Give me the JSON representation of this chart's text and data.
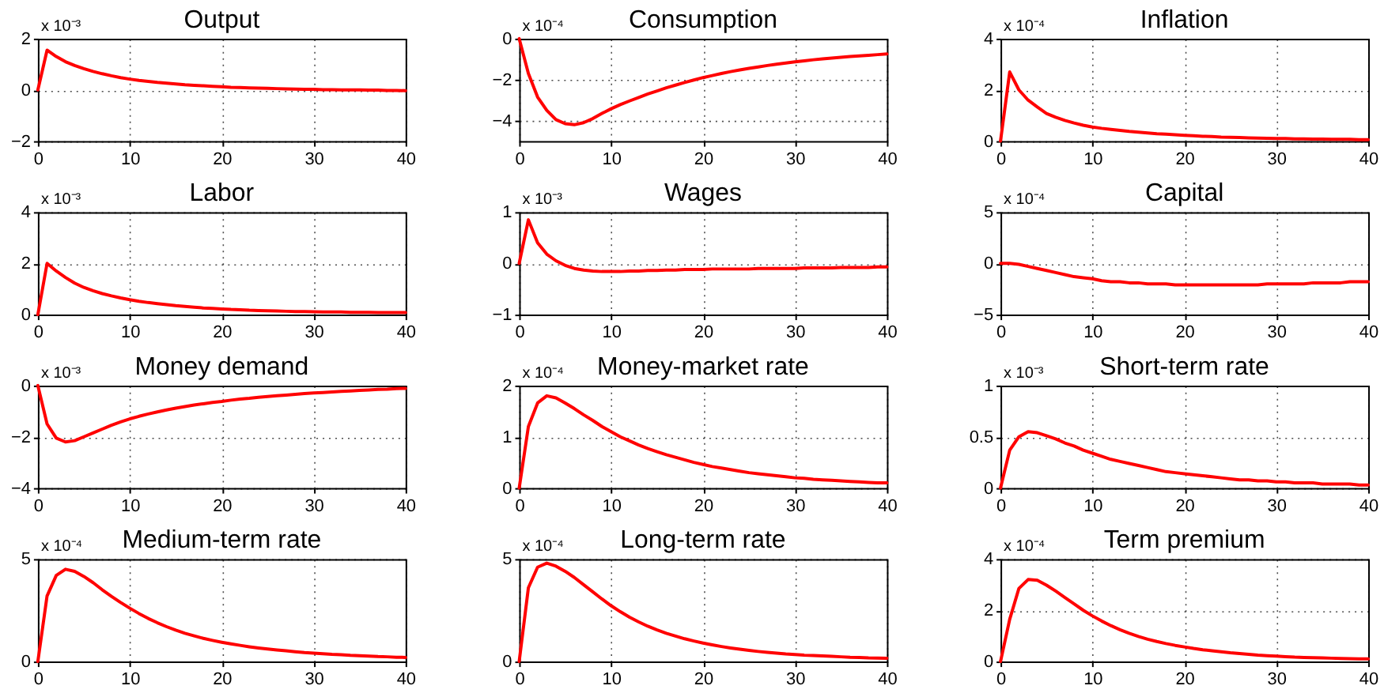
{
  "chart_data": [
    {
      "type": "line",
      "title": "Output",
      "x": [
        0,
        1,
        2,
        3,
        4,
        5,
        6,
        7,
        8,
        9,
        10,
        11,
        12,
        13,
        14,
        15,
        16,
        17,
        18,
        19,
        20,
        21,
        22,
        23,
        24,
        25,
        26,
        27,
        28,
        29,
        30,
        31,
        32,
        33,
        34,
        35,
        36,
        37,
        38,
        39,
        40
      ],
      "series": [
        {
          "color": "#ff0000",
          "values": [
            0,
            1.55,
            1.3,
            1.1,
            0.95,
            0.83,
            0.72,
            0.63,
            0.55,
            0.48,
            0.42,
            0.37,
            0.33,
            0.29,
            0.26,
            0.23,
            0.2,
            0.18,
            0.16,
            0.14,
            0.12,
            0.1,
            0.09,
            0.08,
            0.07,
            0.06,
            0.05,
            0.04,
            0.03,
            0.02,
            0.02,
            0.01,
            0.01,
            0,
            0,
            0,
            -0.01,
            -0.01,
            -0.02,
            -0.02,
            -0.03
          ]
        }
      ],
      "xlim": [
        0,
        40
      ],
      "xticks": [
        0,
        10,
        20,
        30,
        40
      ],
      "ylim": [
        -2,
        2
      ],
      "yticks": [
        -2,
        0,
        2
      ],
      "grid": true,
      "line_style": "solid",
      "annotations": [
        "x 10⁻³"
      ]
    },
    {
      "type": "line",
      "title": "Consumption",
      "x": [
        0,
        1,
        2,
        3,
        4,
        5,
        6,
        7,
        8,
        9,
        10,
        11,
        12,
        13,
        14,
        15,
        16,
        17,
        18,
        19,
        20,
        21,
        22,
        23,
        24,
        25,
        26,
        27,
        28,
        29,
        30,
        31,
        32,
        33,
        34,
        35,
        36,
        37,
        38,
        39,
        40
      ],
      "series": [
        {
          "color": "#ff0000",
          "values": [
            0,
            -1.7,
            -2.85,
            -3.5,
            -3.95,
            -4.15,
            -4.2,
            -4.1,
            -3.9,
            -3.65,
            -3.42,
            -3.22,
            -3.04,
            -2.87,
            -2.7,
            -2.55,
            -2.4,
            -2.27,
            -2.14,
            -2.02,
            -1.9,
            -1.8,
            -1.7,
            -1.61,
            -1.53,
            -1.45,
            -1.38,
            -1.31,
            -1.25,
            -1.19,
            -1.13,
            -1.08,
            -1.03,
            -0.99,
            -0.95,
            -0.91,
            -0.87,
            -0.84,
            -0.81,
            -0.78,
            -0.75
          ]
        }
      ],
      "xlim": [
        0,
        40
      ],
      "xticks": [
        0,
        10,
        20,
        30,
        40
      ],
      "ylim": [
        -5,
        0
      ],
      "yticks": [
        -4,
        -2,
        0
      ],
      "grid": true,
      "line_style": "solid",
      "annotations": [
        "x 10⁻⁴"
      ]
    },
    {
      "type": "line",
      "title": "Inflation",
      "x": [
        0,
        1,
        2,
        3,
        4,
        5,
        6,
        7,
        8,
        9,
        10,
        11,
        12,
        13,
        14,
        15,
        16,
        17,
        18,
        19,
        20,
        21,
        22,
        23,
        24,
        25,
        26,
        27,
        28,
        29,
        30,
        31,
        32,
        33,
        34,
        35,
        36,
        37,
        38,
        39,
        40
      ],
      "series": [
        {
          "color": "#ff0000",
          "values": [
            0,
            2.7,
            2.0,
            1.6,
            1.33,
            1.08,
            0.93,
            0.81,
            0.71,
            0.62,
            0.55,
            0.5,
            0.46,
            0.42,
            0.38,
            0.35,
            0.32,
            0.29,
            0.27,
            0.25,
            0.23,
            0.21,
            0.19,
            0.18,
            0.16,
            0.15,
            0.14,
            0.13,
            0.12,
            0.11,
            0.1,
            0.1,
            0.09,
            0.09,
            0.08,
            0.08,
            0.07,
            0.07,
            0.07,
            0.06,
            0.06
          ]
        }
      ],
      "xlim": [
        0,
        40
      ],
      "xticks": [
        0,
        10,
        20,
        30,
        40
      ],
      "ylim": [
        0,
        4
      ],
      "yticks": [
        0,
        2,
        4
      ],
      "grid": true,
      "line_style": "solid",
      "annotations": [
        "x 10⁻⁴"
      ]
    },
    {
      "type": "line",
      "title": "Labor",
      "x": [
        0,
        1,
        2,
        3,
        4,
        5,
        6,
        7,
        8,
        9,
        10,
        11,
        12,
        13,
        14,
        15,
        16,
        17,
        18,
        19,
        20,
        21,
        22,
        23,
        24,
        25,
        26,
        27,
        28,
        29,
        30,
        31,
        32,
        33,
        34,
        35,
        36,
        37,
        38,
        39,
        40
      ],
      "series": [
        {
          "color": "#ff0000",
          "values": [
            0,
            2.0,
            1.7,
            1.45,
            1.23,
            1.06,
            0.93,
            0.82,
            0.73,
            0.65,
            0.58,
            0.52,
            0.47,
            0.43,
            0.39,
            0.35,
            0.32,
            0.29,
            0.26,
            0.24,
            0.22,
            0.2,
            0.19,
            0.17,
            0.16,
            0.15,
            0.14,
            0.13,
            0.12,
            0.12,
            0.11,
            0.1,
            0.1,
            0.1,
            0.09,
            0.09,
            0.09,
            0.08,
            0.08,
            0.08,
            0.08
          ]
        }
      ],
      "xlim": [
        0,
        40
      ],
      "xticks": [
        0,
        10,
        20,
        30,
        40
      ],
      "ylim": [
        0,
        4
      ],
      "yticks": [
        0,
        2,
        4
      ],
      "grid": true,
      "line_style": "solid",
      "annotations": [
        "x 10⁻³"
      ]
    },
    {
      "type": "line",
      "title": "Wages",
      "x": [
        0,
        1,
        2,
        3,
        4,
        5,
        6,
        7,
        8,
        9,
        10,
        11,
        12,
        13,
        14,
        15,
        16,
        17,
        18,
        19,
        20,
        21,
        22,
        23,
        24,
        25,
        26,
        27,
        28,
        29,
        30,
        31,
        32,
        33,
        34,
        35,
        36,
        37,
        38,
        39,
        40
      ],
      "series": [
        {
          "color": "#ff0000",
          "values": [
            0,
            0.85,
            0.4,
            0.18,
            0.05,
            -0.04,
            -0.1,
            -0.13,
            -0.15,
            -0.16,
            -0.16,
            -0.16,
            -0.15,
            -0.15,
            -0.14,
            -0.14,
            -0.13,
            -0.13,
            -0.12,
            -0.12,
            -0.12,
            -0.11,
            -0.11,
            -0.11,
            -0.11,
            -0.11,
            -0.1,
            -0.1,
            -0.1,
            -0.1,
            -0.1,
            -0.09,
            -0.09,
            -0.09,
            -0.09,
            -0.08,
            -0.08,
            -0.08,
            -0.08,
            -0.07,
            -0.07
          ]
        }
      ],
      "xlim": [
        0,
        40
      ],
      "xticks": [
        0,
        10,
        20,
        30,
        40
      ],
      "ylim": [
        -1,
        1
      ],
      "yticks": [
        -1,
        0,
        1
      ],
      "grid": true,
      "line_style": "solid",
      "annotations": [
        "x 10⁻³"
      ]
    },
    {
      "type": "line",
      "title": "Capital",
      "x": [
        0,
        1,
        2,
        3,
        4,
        5,
        6,
        7,
        8,
        9,
        10,
        11,
        12,
        13,
        14,
        15,
        16,
        17,
        18,
        19,
        20,
        21,
        22,
        23,
        24,
        25,
        26,
        27,
        28,
        29,
        30,
        31,
        32,
        33,
        34,
        35,
        36,
        37,
        38,
        39,
        40
      ],
      "series": [
        {
          "color": "#ff0000",
          "values": [
            0,
            0,
            -0.1,
            -0.3,
            -0.5,
            -0.7,
            -0.9,
            -1.1,
            -1.3,
            -1.4,
            -1.5,
            -1.7,
            -1.8,
            -1.8,
            -1.9,
            -1.9,
            -2.0,
            -2.0,
            -2.0,
            -2.1,
            -2.1,
            -2.1,
            -2.1,
            -2.1,
            -2.1,
            -2.1,
            -2.1,
            -2.1,
            -2.1,
            -2.0,
            -2.0,
            -2.0,
            -2.0,
            -2.0,
            -1.9,
            -1.9,
            -1.9,
            -1.9,
            -1.8,
            -1.8,
            -1.8
          ]
        }
      ],
      "xlim": [
        0,
        40
      ],
      "xticks": [
        0,
        10,
        20,
        30,
        40
      ],
      "ylim": [
        -5,
        5
      ],
      "yticks": [
        -5,
        0,
        5
      ],
      "grid": true,
      "line_style": "solid",
      "annotations": [
        "x 10⁻⁴"
      ]
    },
    {
      "type": "line",
      "title": "Money demand",
      "x": [
        0,
        1,
        2,
        3,
        4,
        5,
        6,
        7,
        8,
        9,
        10,
        11,
        12,
        13,
        14,
        15,
        16,
        17,
        18,
        19,
        20,
        21,
        22,
        23,
        24,
        25,
        26,
        27,
        28,
        29,
        30,
        31,
        32,
        33,
        34,
        35,
        36,
        37,
        38,
        39,
        40
      ],
      "series": [
        {
          "color": "#ff0000",
          "values": [
            0,
            -1.5,
            -2.05,
            -2.2,
            -2.15,
            -2.0,
            -1.85,
            -1.7,
            -1.55,
            -1.42,
            -1.3,
            -1.2,
            -1.11,
            -1.03,
            -0.95,
            -0.88,
            -0.82,
            -0.76,
            -0.71,
            -0.66,
            -0.62,
            -0.57,
            -0.53,
            -0.5,
            -0.46,
            -0.43,
            -0.4,
            -0.37,
            -0.34,
            -0.31,
            -0.29,
            -0.27,
            -0.25,
            -0.23,
            -0.21,
            -0.19,
            -0.17,
            -0.15,
            -0.14,
            -0.12,
            -0.11
          ]
        }
      ],
      "xlim": [
        0,
        40
      ],
      "xticks": [
        0,
        10,
        20,
        30,
        40
      ],
      "ylim": [
        -4,
        0
      ],
      "yticks": [
        -4,
        -2,
        0
      ],
      "grid": true,
      "line_style": "solid",
      "annotations": [
        "x 10⁻³"
      ]
    },
    {
      "type": "line",
      "title": "Money-market rate",
      "x": [
        0,
        1,
        2,
        3,
        4,
        5,
        6,
        7,
        8,
        9,
        10,
        11,
        12,
        13,
        14,
        15,
        16,
        17,
        18,
        19,
        20,
        21,
        22,
        23,
        24,
        25,
        26,
        27,
        28,
        29,
        30,
        31,
        32,
        33,
        34,
        35,
        36,
        37,
        38,
        39,
        40
      ],
      "series": [
        {
          "color": "#ff0000",
          "values": [
            0,
            1.2,
            1.66,
            1.8,
            1.76,
            1.66,
            1.55,
            1.43,
            1.32,
            1.2,
            1.1,
            1.0,
            0.92,
            0.84,
            0.77,
            0.71,
            0.65,
            0.6,
            0.55,
            0.5,
            0.46,
            0.42,
            0.39,
            0.36,
            0.33,
            0.3,
            0.28,
            0.26,
            0.24,
            0.22,
            0.2,
            0.19,
            0.17,
            0.16,
            0.15,
            0.14,
            0.13,
            0.12,
            0.11,
            0.1,
            0.1
          ]
        }
      ],
      "xlim": [
        0,
        40
      ],
      "xticks": [
        0,
        10,
        20,
        30,
        40
      ],
      "ylim": [
        0,
        2
      ],
      "yticks": [
        0,
        1,
        2
      ],
      "grid": true,
      "line_style": "solid",
      "annotations": [
        "x 10⁻⁴"
      ]
    },
    {
      "type": "line",
      "title": "Short-term rate",
      "x": [
        0,
        1,
        2,
        3,
        4,
        5,
        6,
        7,
        8,
        9,
        10,
        11,
        12,
        13,
        14,
        15,
        16,
        17,
        18,
        19,
        20,
        21,
        22,
        23,
        24,
        25,
        26,
        27,
        28,
        29,
        30,
        31,
        32,
        33,
        34,
        35,
        36,
        37,
        38,
        39,
        40
      ],
      "series": [
        {
          "color": "#ff0000",
          "values": [
            0,
            0.37,
            0.5,
            0.55,
            0.54,
            0.51,
            0.48,
            0.44,
            0.41,
            0.37,
            0.34,
            0.31,
            0.28,
            0.26,
            0.24,
            0.22,
            0.2,
            0.18,
            0.16,
            0.15,
            0.14,
            0.13,
            0.12,
            0.11,
            0.1,
            0.09,
            0.08,
            0.08,
            0.07,
            0.07,
            0.06,
            0.06,
            0.05,
            0.05,
            0.05,
            0.04,
            0.04,
            0.04,
            0.04,
            0.03,
            0.03
          ]
        }
      ],
      "xlim": [
        0,
        40
      ],
      "xticks": [
        0,
        10,
        20,
        30,
        40
      ],
      "ylim": [
        0,
        1
      ],
      "yticks": [
        0,
        0.5,
        1
      ],
      "grid": true,
      "line_style": "solid",
      "annotations": [
        "x 10⁻³"
      ]
    },
    {
      "type": "line",
      "title": "Medium-term rate",
      "x": [
        0,
        1,
        2,
        3,
        4,
        5,
        6,
        7,
        8,
        9,
        10,
        11,
        12,
        13,
        14,
        15,
        16,
        17,
        18,
        19,
        20,
        21,
        22,
        23,
        24,
        25,
        26,
        27,
        28,
        29,
        30,
        31,
        32,
        33,
        34,
        35,
        36,
        37,
        38,
        39,
        40
      ],
      "series": [
        {
          "color": "#ff0000",
          "values": [
            0,
            3.2,
            4.2,
            4.5,
            4.4,
            4.15,
            3.85,
            3.5,
            3.18,
            2.88,
            2.6,
            2.34,
            2.1,
            1.89,
            1.7,
            1.53,
            1.38,
            1.25,
            1.13,
            1.03,
            0.94,
            0.86,
            0.79,
            0.72,
            0.66,
            0.61,
            0.56,
            0.52,
            0.48,
            0.44,
            0.41,
            0.38,
            0.35,
            0.33,
            0.3,
            0.28,
            0.26,
            0.24,
            0.23,
            0.21,
            0.2
          ]
        }
      ],
      "xlim": [
        0,
        40
      ],
      "xticks": [
        0,
        10,
        20,
        30,
        40
      ],
      "ylim": [
        0,
        5
      ],
      "yticks": [
        0,
        5
      ],
      "grid": true,
      "line_style": "solid",
      "annotations": [
        "x 10⁻⁴"
      ]
    },
    {
      "type": "line",
      "title": "Long-term rate",
      "x": [
        0,
        1,
        2,
        3,
        4,
        5,
        6,
        7,
        8,
        9,
        10,
        11,
        12,
        13,
        14,
        15,
        16,
        17,
        18,
        19,
        20,
        21,
        22,
        23,
        24,
        25,
        26,
        27,
        28,
        29,
        30,
        31,
        32,
        33,
        34,
        35,
        36,
        37,
        38,
        39,
        40
      ],
      "series": [
        {
          "color": "#ff0000",
          "values": [
            0,
            3.6,
            4.6,
            4.8,
            4.65,
            4.4,
            4.1,
            3.75,
            3.4,
            3.05,
            2.72,
            2.43,
            2.16,
            1.93,
            1.72,
            1.54,
            1.38,
            1.24,
            1.11,
            1.0,
            0.9,
            0.81,
            0.73,
            0.66,
            0.6,
            0.54,
            0.49,
            0.45,
            0.41,
            0.37,
            0.34,
            0.31,
            0.29,
            0.27,
            0.25,
            0.23,
            0.21,
            0.2,
            0.18,
            0.17,
            0.16
          ]
        }
      ],
      "xlim": [
        0,
        40
      ],
      "xticks": [
        0,
        10,
        20,
        30,
        40
      ],
      "ylim": [
        0,
        5
      ],
      "yticks": [
        0,
        5
      ],
      "grid": true,
      "line_style": "solid",
      "annotations": [
        "x 10⁻⁴"
      ]
    },
    {
      "type": "line",
      "title": "Term premium",
      "x": [
        0,
        1,
        2,
        3,
        4,
        5,
        6,
        7,
        8,
        9,
        10,
        11,
        12,
        13,
        14,
        15,
        16,
        17,
        18,
        19,
        20,
        21,
        22,
        23,
        24,
        25,
        26,
        27,
        28,
        29,
        30,
        31,
        32,
        33,
        34,
        35,
        36,
        37,
        38,
        39,
        40
      ],
      "series": [
        {
          "color": "#ff0000",
          "values": [
            0,
            1.65,
            2.85,
            3.2,
            3.17,
            2.98,
            2.75,
            2.5,
            2.25,
            2.0,
            1.78,
            1.58,
            1.4,
            1.24,
            1.1,
            0.98,
            0.87,
            0.78,
            0.7,
            0.63,
            0.57,
            0.51,
            0.46,
            0.42,
            0.38,
            0.34,
            0.31,
            0.28,
            0.25,
            0.23,
            0.21,
            0.19,
            0.17,
            0.16,
            0.15,
            0.14,
            0.13,
            0.12,
            0.11,
            0.1,
            0.1
          ]
        }
      ],
      "xlim": [
        0,
        40
      ],
      "xticks": [
        0,
        10,
        20,
        30,
        40
      ],
      "ylim": [
        0,
        4
      ],
      "yticks": [
        0,
        2,
        4
      ],
      "grid": true,
      "line_style": "solid",
      "annotations": [
        "x 10⁻⁴"
      ]
    }
  ]
}
